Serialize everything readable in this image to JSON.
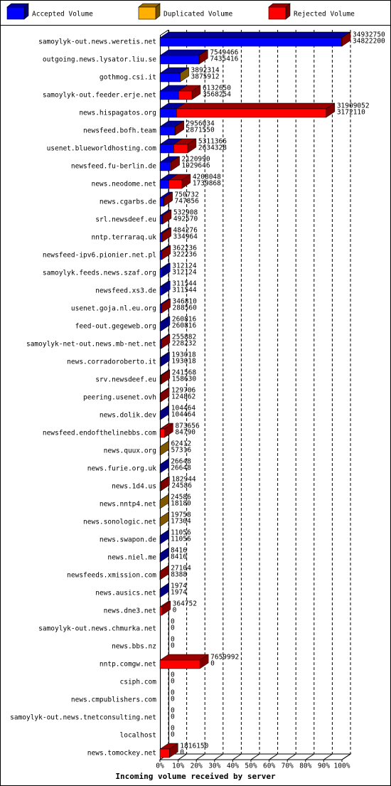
{
  "chart_data": {
    "type": "bar3d",
    "x_label": "Incoming volume received by server",
    "categories": [
      "samoylyk-out.news.weretis.net",
      "outgoing.news.lysator.liu.se",
      "gothmog.csi.it",
      "samoylyk-out.feeder.erje.net",
      "news.hispagatos.org",
      "newsfeed.bofh.team",
      "usenet.blueworldhosting.com",
      "newsfeed.fu-berlin.de",
      "news.neodome.net",
      "news.cgarbs.de",
      "srl.newsdeef.eu",
      "nntp.terraraq.uk",
      "newsfeed-ipv6.pionier.net.pl",
      "samoylyk.feeds.news.szaf.org",
      "newsfeed.xs3.de",
      "usenet.goja.nl.eu.org",
      "feed-out.gegeweb.org",
      "samoylyk-net-out.news.mb-net.net",
      "news.corradoroberto.it",
      "srv.newsdeef.eu",
      "peering.usenet.ovh",
      "news.dolik.dev",
      "newsfeed.endofthelinebbs.com",
      "news.quux.org",
      "news.furie.org.uk",
      "news.1d4.us",
      "news.nntp4.net",
      "news.sonologic.net",
      "news.swapon.de",
      "news.niel.me",
      "newsfeeds.xmission.com",
      "news.ausics.net",
      "news.dne3.net",
      "samoylyk-out.news.chmurka.net",
      "news.bbs.nz",
      "nntp.comgw.net",
      "csiph.com",
      "news.cmpublishers.com",
      "samoylyk-out.news.tnetconsulting.net",
      "localhost",
      "news.tomockey.net"
    ],
    "totals": [
      34932750,
      7549466,
      3892314,
      6132650,
      31909052,
      2956034,
      5311366,
      2120990,
      4208048,
      750732,
      532908,
      484276,
      362236,
      312124,
      311544,
      346810,
      260816,
      255882,
      193018,
      241568,
      129706,
      104464,
      873656,
      62412,
      26648,
      182944,
      24586,
      19758,
      11056,
      8416,
      27104,
      1974,
      364752,
      0,
      0,
      7659992,
      0,
      0,
      0,
      0,
      1816150
    ],
    "series": [
      {
        "name": "Accepted Volume",
        "color": "#0000ff",
        "values": [
          34822200,
          7435416,
          3875912,
          3568254,
          3172110,
          2871550,
          2634328,
          1929646,
          1739868,
          747856,
          492570,
          334964,
          322236,
          312124,
          311544,
          288560,
          260816,
          228232,
          193018,
          158630,
          124862,
          104464,
          84790,
          57316,
          26648,
          24586,
          18180,
          17304,
          11056,
          8416,
          8388,
          1974,
          0,
          0,
          0,
          0,
          0,
          0,
          0,
          0,
          0
        ]
      },
      {
        "name": "Duplicated Volume",
        "color": "#ffb000",
        "values": [
          0,
          0,
          16402,
          0,
          0,
          0,
          0,
          0,
          0,
          0,
          0,
          0,
          0,
          0,
          0,
          0,
          0,
          0,
          0,
          0,
          0,
          0,
          0,
          5096,
          0,
          0,
          6406,
          2454,
          0,
          0,
          0,
          0,
          0,
          0,
          0,
          0,
          0,
          0,
          0,
          0,
          0
        ]
      },
      {
        "name": "Rejected Volume",
        "color": "#ff0000",
        "values": [
          110550,
          114050,
          0,
          2564396,
          28736942,
          84484,
          2677038,
          191344,
          2468180,
          2876,
          40338,
          149312,
          40000,
          0,
          0,
          58250,
          0,
          27650,
          0,
          82938,
          4844,
          0,
          788866,
          0,
          0,
          158358,
          0,
          0,
          0,
          0,
          18716,
          0,
          364752,
          0,
          0,
          7659992,
          0,
          0,
          0,
          0,
          1816150
        ]
      }
    ],
    "xlim": [
      0,
      34932750
    ],
    "xticks": [
      {
        "value": 0,
        "label": "0%"
      },
      {
        "value": 3493275,
        "label": "10%"
      },
      {
        "value": 6986550,
        "label": "20%"
      },
      {
        "value": 10479825,
        "label": "30%"
      },
      {
        "value": 13973100,
        "label": "40%"
      },
      {
        "value": 17466375,
        "label": "50%"
      },
      {
        "value": 20959650,
        "label": "60%"
      },
      {
        "value": 24452925,
        "label": "70%"
      },
      {
        "value": 27946200,
        "label": "80%"
      },
      {
        "value": 31439475,
        "label": "90%"
      },
      {
        "value": 34932750,
        "label": "100%"
      }
    ],
    "grid": true
  }
}
